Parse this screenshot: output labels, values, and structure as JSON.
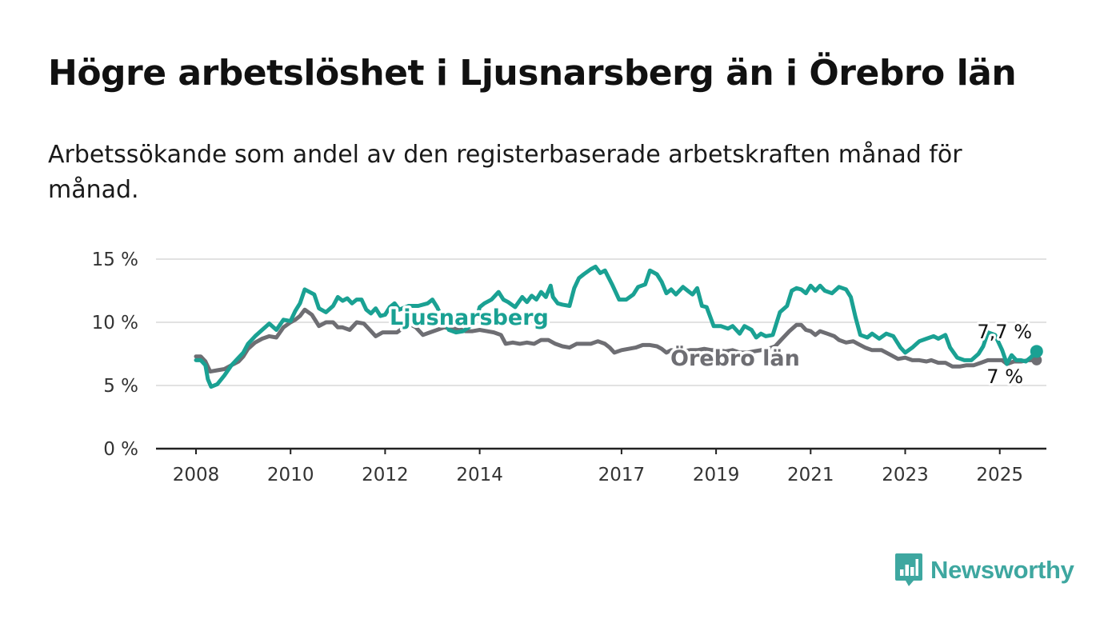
{
  "title": "Högre arbetslöshet i Ljusnarsberg än i Örebro län",
  "subtitle": "Arbetssökande som andel av den registerbaserade arbetskraften månad för månad.",
  "brand": {
    "name": "Newsworthy",
    "color": "#3ea7a0",
    "icon": "bar-chart-speech-bubble-icon"
  },
  "chart_data": {
    "type": "line",
    "title": "Högre arbetslöshet i Ljusnarsberg än i Örebro län",
    "subtitle": "Arbetssökande som andel av den registerbaserade arbetskraften månad för månad.",
    "xlabel": "",
    "ylabel": "",
    "xlim": [
      2008,
      2025.3
    ],
    "ylim": [
      0,
      15
    ],
    "x_ticks": [
      "2008",
      "2010",
      "2012",
      "2014",
      "2017",
      "2019",
      "2021",
      "2023",
      "2025"
    ],
    "y_ticks": [
      "0 %",
      "5 %",
      "10 %",
      "15 %"
    ],
    "grid": true,
    "legend": "inline labels on the lines",
    "series": [
      {
        "name": "Ljusnarsberg",
        "color": "#1aa193",
        "end_label": "7,7 %",
        "points": [
          [
            2008.0,
            7.0
          ],
          [
            2008.1,
            7.0
          ],
          [
            2008.2,
            6.6
          ],
          [
            2008.25,
            5.5
          ],
          [
            2008.32,
            4.9
          ],
          [
            2008.45,
            5.1
          ],
          [
            2008.6,
            5.8
          ],
          [
            2008.75,
            6.6
          ],
          [
            2008.9,
            7.2
          ],
          [
            2009.0,
            7.6
          ],
          [
            2009.1,
            8.3
          ],
          [
            2009.25,
            8.9
          ],
          [
            2009.4,
            9.4
          ],
          [
            2009.55,
            9.9
          ],
          [
            2009.7,
            9.4
          ],
          [
            2009.85,
            10.2
          ],
          [
            2010.0,
            10.1
          ],
          [
            2010.1,
            10.9
          ],
          [
            2010.2,
            11.5
          ],
          [
            2010.3,
            12.6
          ],
          [
            2010.5,
            12.2
          ],
          [
            2010.6,
            11.1
          ],
          [
            2010.75,
            10.8
          ],
          [
            2010.9,
            11.3
          ],
          [
            2011.0,
            12.0
          ],
          [
            2011.1,
            11.7
          ],
          [
            2011.2,
            11.9
          ],
          [
            2011.3,
            11.5
          ],
          [
            2011.4,
            11.8
          ],
          [
            2011.5,
            11.8
          ],
          [
            2011.6,
            11.0
          ],
          [
            2011.7,
            10.7
          ],
          [
            2011.8,
            11.1
          ],
          [
            2011.9,
            10.5
          ],
          [
            2012.0,
            10.6
          ],
          [
            2012.1,
            11.2
          ],
          [
            2012.2,
            11.5
          ],
          [
            2012.3,
            11.0
          ],
          [
            2012.5,
            11.3
          ],
          [
            2012.7,
            11.3
          ],
          [
            2012.9,
            11.5
          ],
          [
            2013.0,
            11.8
          ],
          [
            2013.1,
            11.2
          ],
          [
            2013.2,
            10.4
          ],
          [
            2013.35,
            9.4
          ],
          [
            2013.5,
            9.2
          ],
          [
            2013.65,
            9.3
          ],
          [
            2013.8,
            9.7
          ],
          [
            2013.95,
            10.5
          ],
          [
            2014.0,
            11.2
          ],
          [
            2014.1,
            11.5
          ],
          [
            2014.25,
            11.8
          ],
          [
            2014.4,
            12.4
          ],
          [
            2014.5,
            11.8
          ],
          [
            2014.6,
            11.6
          ],
          [
            2014.75,
            11.2
          ],
          [
            2014.9,
            12.0
          ],
          [
            2015.0,
            11.6
          ],
          [
            2015.1,
            12.1
          ],
          [
            2015.2,
            11.8
          ],
          [
            2015.3,
            12.4
          ],
          [
            2015.4,
            12.0
          ],
          [
            2015.5,
            12.9
          ],
          [
            2015.55,
            12.0
          ],
          [
            2015.65,
            11.5
          ],
          [
            2015.75,
            11.4
          ],
          [
            2015.9,
            11.3
          ],
          [
            2016.0,
            12.7
          ],
          [
            2016.1,
            13.5
          ],
          [
            2016.2,
            13.8
          ],
          [
            2016.35,
            14.2
          ],
          [
            2016.45,
            14.4
          ],
          [
            2016.55,
            13.9
          ],
          [
            2016.65,
            14.1
          ],
          [
            2016.8,
            13.0
          ],
          [
            2016.95,
            11.8
          ],
          [
            2017.1,
            11.8
          ],
          [
            2017.25,
            12.2
          ],
          [
            2017.35,
            12.8
          ],
          [
            2017.5,
            13.0
          ],
          [
            2017.6,
            14.1
          ],
          [
            2017.75,
            13.8
          ],
          [
            2017.85,
            13.2
          ],
          [
            2017.95,
            12.3
          ],
          [
            2018.05,
            12.6
          ],
          [
            2018.15,
            12.2
          ],
          [
            2018.3,
            12.8
          ],
          [
            2018.4,
            12.5
          ],
          [
            2018.5,
            12.2
          ],
          [
            2018.6,
            12.7
          ],
          [
            2018.7,
            11.3
          ],
          [
            2018.8,
            11.2
          ],
          [
            2018.95,
            9.7
          ],
          [
            2019.1,
            9.7
          ],
          [
            2019.25,
            9.5
          ],
          [
            2019.35,
            9.7
          ],
          [
            2019.5,
            9.1
          ],
          [
            2019.6,
            9.7
          ],
          [
            2019.75,
            9.4
          ],
          [
            2019.85,
            8.8
          ],
          [
            2019.95,
            9.1
          ],
          [
            2020.05,
            8.9
          ],
          [
            2020.2,
            9.0
          ],
          [
            2020.35,
            10.8
          ],
          [
            2020.5,
            11.3
          ],
          [
            2020.6,
            12.5
          ],
          [
            2020.7,
            12.7
          ],
          [
            2020.8,
            12.6
          ],
          [
            2020.9,
            12.3
          ],
          [
            2021.0,
            12.9
          ],
          [
            2021.1,
            12.5
          ],
          [
            2021.2,
            12.9
          ],
          [
            2021.3,
            12.5
          ],
          [
            2021.45,
            12.3
          ],
          [
            2021.6,
            12.8
          ],
          [
            2021.75,
            12.6
          ],
          [
            2021.85,
            12.0
          ],
          [
            2021.95,
            10.4
          ],
          [
            2022.05,
            9.0
          ],
          [
            2022.2,
            8.8
          ],
          [
            2022.3,
            9.1
          ],
          [
            2022.45,
            8.7
          ],
          [
            2022.6,
            9.1
          ],
          [
            2022.75,
            8.9
          ],
          [
            2022.9,
            8.0
          ],
          [
            2023.0,
            7.6
          ],
          [
            2023.15,
            8.0
          ],
          [
            2023.3,
            8.5
          ],
          [
            2023.45,
            8.7
          ],
          [
            2023.6,
            8.9
          ],
          [
            2023.7,
            8.7
          ],
          [
            2023.85,
            9.0
          ],
          [
            2023.95,
            8.0
          ],
          [
            2024.1,
            7.2
          ],
          [
            2024.25,
            7.0
          ],
          [
            2024.4,
            7.0
          ],
          [
            2024.55,
            7.5
          ],
          [
            2024.65,
            8.1
          ],
          [
            2024.75,
            9.2
          ],
          [
            2024.9,
            9.0
          ],
          [
            2025.05,
            7.8
          ],
          [
            2025.15,
            6.7
          ],
          [
            2025.25,
            7.4
          ],
          [
            2025.35,
            7.0
          ],
          [
            2025.45,
            7.0
          ],
          [
            2025.55,
            6.9
          ],
          [
            2025.65,
            7.2
          ],
          [
            2025.78,
            7.7
          ]
        ]
      },
      {
        "name": "Örebro län",
        "color": "#6e6e73",
        "end_label": "7 %",
        "points": [
          [
            2008.0,
            7.3
          ],
          [
            2008.1,
            7.3
          ],
          [
            2008.2,
            6.9
          ],
          [
            2008.3,
            6.1
          ],
          [
            2008.45,
            6.2
          ],
          [
            2008.6,
            6.3
          ],
          [
            2008.75,
            6.6
          ],
          [
            2008.9,
            6.9
          ],
          [
            2009.0,
            7.3
          ],
          [
            2009.1,
            7.9
          ],
          [
            2009.25,
            8.4
          ],
          [
            2009.4,
            8.7
          ],
          [
            2009.55,
            8.9
          ],
          [
            2009.7,
            8.8
          ],
          [
            2009.85,
            9.6
          ],
          [
            2010.0,
            10.0
          ],
          [
            2010.1,
            10.2
          ],
          [
            2010.2,
            10.5
          ],
          [
            2010.3,
            11.0
          ],
          [
            2010.45,
            10.6
          ],
          [
            2010.6,
            9.7
          ],
          [
            2010.75,
            10.0
          ],
          [
            2010.9,
            10.0
          ],
          [
            2011.0,
            9.6
          ],
          [
            2011.1,
            9.6
          ],
          [
            2011.25,
            9.4
          ],
          [
            2011.4,
            10.0
          ],
          [
            2011.55,
            9.9
          ],
          [
            2011.7,
            9.3
          ],
          [
            2011.8,
            8.9
          ],
          [
            2011.95,
            9.2
          ],
          [
            2012.1,
            9.2
          ],
          [
            2012.25,
            9.2
          ],
          [
            2012.4,
            9.6
          ],
          [
            2012.5,
            9.9
          ],
          [
            2012.65,
            9.6
          ],
          [
            2012.8,
            9.0
          ],
          [
            2012.95,
            9.2
          ],
          [
            2013.1,
            9.4
          ],
          [
            2013.25,
            9.6
          ],
          [
            2013.4,
            9.5
          ],
          [
            2013.55,
            9.5
          ],
          [
            2013.7,
            9.3
          ],
          [
            2013.85,
            9.3
          ],
          [
            2014.0,
            9.4
          ],
          [
            2014.15,
            9.3
          ],
          [
            2014.3,
            9.2
          ],
          [
            2014.45,
            9.0
          ],
          [
            2014.55,
            8.3
          ],
          [
            2014.7,
            8.4
          ],
          [
            2014.85,
            8.3
          ],
          [
            2015.0,
            8.4
          ],
          [
            2015.15,
            8.3
          ],
          [
            2015.3,
            8.6
          ],
          [
            2015.45,
            8.6
          ],
          [
            2015.6,
            8.3
          ],
          [
            2015.75,
            8.1
          ],
          [
            2015.9,
            8.0
          ],
          [
            2016.05,
            8.3
          ],
          [
            2016.2,
            8.3
          ],
          [
            2016.35,
            8.3
          ],
          [
            2016.5,
            8.5
          ],
          [
            2016.65,
            8.3
          ],
          [
            2016.75,
            8.0
          ],
          [
            2016.85,
            7.6
          ],
          [
            2017.0,
            7.8
          ],
          [
            2017.15,
            7.9
          ],
          [
            2017.3,
            8.0
          ],
          [
            2017.45,
            8.2
          ],
          [
            2017.6,
            8.2
          ],
          [
            2017.75,
            8.1
          ],
          [
            2017.85,
            7.9
          ],
          [
            2017.95,
            7.6
          ],
          [
            2018.05,
            7.8
          ],
          [
            2018.2,
            7.7
          ],
          [
            2018.3,
            7.7
          ],
          [
            2018.45,
            7.8
          ],
          [
            2018.6,
            7.8
          ],
          [
            2018.75,
            7.9
          ],
          [
            2018.9,
            7.8
          ],
          [
            2019.05,
            7.8
          ],
          [
            2019.2,
            7.7
          ],
          [
            2019.35,
            7.8
          ],
          [
            2019.5,
            7.6
          ],
          [
            2019.65,
            7.6
          ],
          [
            2019.8,
            7.7
          ],
          [
            2019.95,
            7.8
          ],
          [
            2020.1,
            7.9
          ],
          [
            2020.25,
            8.1
          ],
          [
            2020.4,
            8.7
          ],
          [
            2020.55,
            9.3
          ],
          [
            2020.7,
            9.8
          ],
          [
            2020.8,
            9.8
          ],
          [
            2020.9,
            9.4
          ],
          [
            2021.0,
            9.3
          ],
          [
            2021.1,
            9.0
          ],
          [
            2021.2,
            9.3
          ],
          [
            2021.35,
            9.1
          ],
          [
            2021.5,
            8.9
          ],
          [
            2021.6,
            8.6
          ],
          [
            2021.75,
            8.4
          ],
          [
            2021.9,
            8.5
          ],
          [
            2022.0,
            8.3
          ],
          [
            2022.15,
            8.0
          ],
          [
            2022.3,
            7.8
          ],
          [
            2022.5,
            7.8
          ],
          [
            2022.7,
            7.4
          ],
          [
            2022.85,
            7.1
          ],
          [
            2023.0,
            7.2
          ],
          [
            2023.15,
            7.0
          ],
          [
            2023.3,
            7.0
          ],
          [
            2023.45,
            6.9
          ],
          [
            2023.55,
            7.0
          ],
          [
            2023.7,
            6.8
          ],
          [
            2023.85,
            6.8
          ],
          [
            2024.0,
            6.5
          ],
          [
            2024.15,
            6.5
          ],
          [
            2024.3,
            6.6
          ],
          [
            2024.45,
            6.6
          ],
          [
            2024.6,
            6.8
          ],
          [
            2024.75,
            7.0
          ],
          [
            2024.9,
            7.0
          ],
          [
            2025.05,
            7.0
          ],
          [
            2025.15,
            6.7
          ],
          [
            2025.3,
            6.9
          ],
          [
            2025.45,
            6.9
          ],
          [
            2025.6,
            7.0
          ],
          [
            2025.78,
            7.0
          ]
        ]
      }
    ]
  }
}
